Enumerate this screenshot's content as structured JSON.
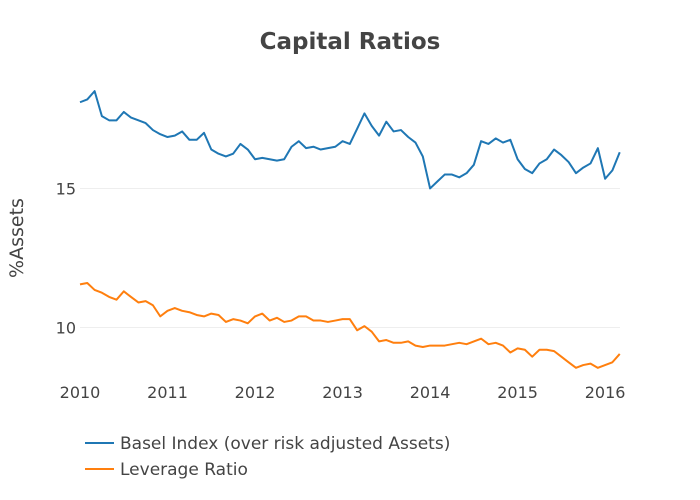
{
  "chart_data": {
    "type": "line",
    "title": "Capital Ratios",
    "xlabel": "",
    "ylabel": "%Assets",
    "xlim": [
      2010,
      2016.17
    ],
    "ylim": [
      8.4,
      18.9
    ],
    "x_ticks": [
      2010,
      2011,
      2012,
      2013,
      2014,
      2015,
      2016
    ],
    "y_ticks": [
      10,
      15
    ],
    "grid": true,
    "legend_position": "bottom-left",
    "x": [
      2010.0,
      2010.083,
      2010.167,
      2010.25,
      2010.333,
      2010.417,
      2010.5,
      2010.583,
      2010.667,
      2010.75,
      2010.833,
      2010.917,
      2011.0,
      2011.083,
      2011.167,
      2011.25,
      2011.333,
      2011.417,
      2011.5,
      2011.583,
      2011.667,
      2011.75,
      2011.833,
      2011.917,
      2012.0,
      2012.083,
      2012.167,
      2012.25,
      2012.333,
      2012.417,
      2012.5,
      2012.583,
      2012.667,
      2012.75,
      2012.833,
      2012.917,
      2013.0,
      2013.083,
      2013.167,
      2013.25,
      2013.333,
      2013.417,
      2013.5,
      2013.583,
      2013.667,
      2013.75,
      2013.833,
      2013.917,
      2014.0,
      2014.083,
      2014.167,
      2014.25,
      2014.333,
      2014.417,
      2014.5,
      2014.583,
      2014.667,
      2014.75,
      2014.833,
      2014.917,
      2015.0,
      2015.083,
      2015.167,
      2015.25,
      2015.333,
      2015.417,
      2015.5,
      2015.583,
      2015.667,
      2015.75,
      2015.833,
      2015.917,
      2016.0,
      2016.083,
      2016.167
    ],
    "series": [
      {
        "name": "Basel Index (over risk adjusted Assets)",
        "color": "#1f77b4",
        "values": [
          18.1,
          18.2,
          18.5,
          17.6,
          17.45,
          17.45,
          17.75,
          17.55,
          17.45,
          17.35,
          17.1,
          16.95,
          16.85,
          16.9,
          17.05,
          16.75,
          16.75,
          17.0,
          16.4,
          16.25,
          16.15,
          16.25,
          16.6,
          16.4,
          16.05,
          16.1,
          16.05,
          16.0,
          16.05,
          16.5,
          16.7,
          16.45,
          16.5,
          16.4,
          16.45,
          16.5,
          16.7,
          16.6,
          17.15,
          17.7,
          17.25,
          16.9,
          17.4,
          17.05,
          17.1,
          16.85,
          16.65,
          16.15,
          15.0,
          15.25,
          15.5,
          15.5,
          15.4,
          15.55,
          15.85,
          16.7,
          16.6,
          16.8,
          16.65,
          16.75,
          16.05,
          15.7,
          15.55,
          15.9,
          16.05,
          16.4,
          16.2,
          15.95,
          15.55,
          15.75,
          15.9,
          16.45,
          15.35,
          15.65,
          16.3
        ]
      },
      {
        "name": "Leverage Ratio",
        "color": "#ff7f0e",
        "values": [
          11.55,
          11.6,
          11.35,
          11.25,
          11.1,
          11.0,
          11.3,
          11.1,
          10.9,
          10.95,
          10.8,
          10.4,
          10.6,
          10.7,
          10.6,
          10.55,
          10.45,
          10.4,
          10.5,
          10.45,
          10.2,
          10.3,
          10.25,
          10.15,
          10.4,
          10.5,
          10.25,
          10.35,
          10.2,
          10.25,
          10.4,
          10.4,
          10.25,
          10.25,
          10.2,
          10.25,
          10.3,
          10.3,
          9.9,
          10.05,
          9.85,
          9.5,
          9.55,
          9.45,
          9.45,
          9.5,
          9.35,
          9.3,
          9.35,
          9.35,
          9.35,
          9.4,
          9.45,
          9.4,
          9.5,
          9.6,
          9.4,
          9.45,
          9.35,
          9.1,
          9.25,
          9.2,
          8.95,
          9.2,
          9.2,
          9.15,
          8.95,
          8.75,
          8.55,
          8.65,
          8.7,
          8.55,
          8.65,
          8.75,
          9.05
        ]
      }
    ]
  }
}
